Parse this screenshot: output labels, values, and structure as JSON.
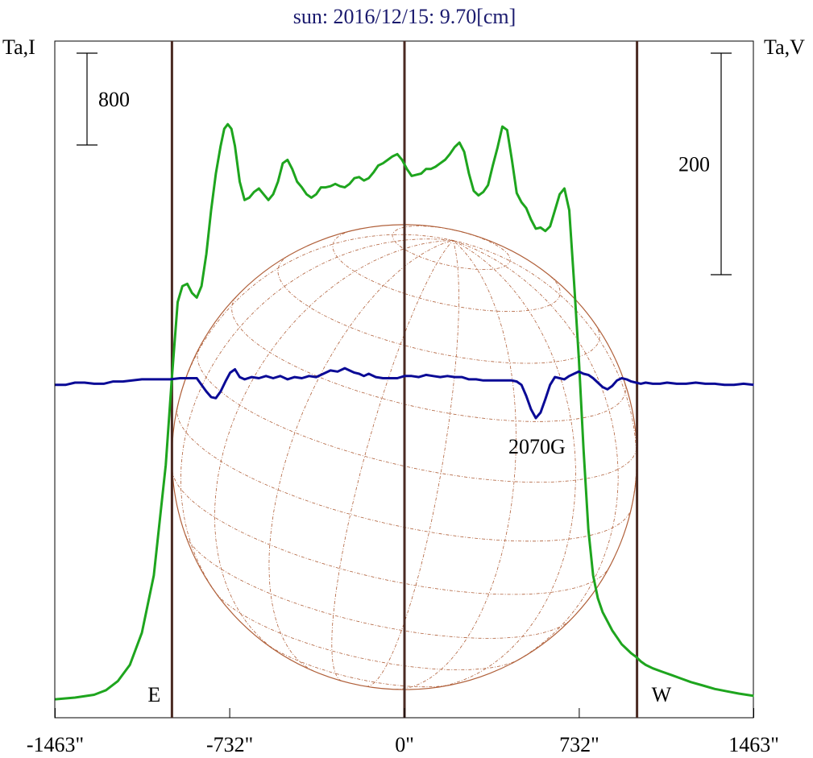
{
  "chart_data": {
    "type": "line",
    "title": "sun: 2016/12/15: 9.70[cm]",
    "y_left_label": "Ta,I",
    "y_right_label": "Ta,V",
    "x_unit": "arcsec",
    "xlim": [
      -1463,
      1463
    ],
    "x_ticks": [
      -1463,
      -732,
      0,
      732,
      1463
    ],
    "x_tick_labels": [
      "-1463\"",
      "-732\"",
      "0\"",
      "732\"",
      "1463\""
    ],
    "limb_markers": [
      {
        "x": -974,
        "label": "E"
      },
      {
        "x": 0,
        "label": ""
      },
      {
        "x": 974,
        "label": "W"
      }
    ],
    "scale_bars": [
      {
        "axis": "left",
        "label": "800",
        "value": 800
      },
      {
        "axis": "right",
        "label": "200",
        "value": 200
      }
    ],
    "annotations": [
      {
        "label": "2070G",
        "x": 555
      }
    ],
    "colors": {
      "title": "#1a1a6e",
      "intensity": "#1ea51e",
      "polarization": "#0a0a96",
      "limb": "#4a2a22",
      "disk": "#b0603a",
      "text": "#000000"
    },
    "series": [
      {
        "key": "intensity",
        "axis": "left",
        "x": [
          -1463,
          -1380,
          -1300,
          -1250,
          -1200,
          -1150,
          -1100,
          -1050,
          -1000,
          -975,
          -950,
          -930,
          -910,
          -890,
          -870,
          -850,
          -830,
          -810,
          -790,
          -770,
          -755,
          -740,
          -725,
          -710,
          -690,
          -670,
          -650,
          -630,
          -610,
          -590,
          -570,
          -550,
          -530,
          -510,
          -490,
          -470,
          -450,
          -430,
          -410,
          -390,
          -370,
          -350,
          -330,
          -310,
          -290,
          -270,
          -250,
          -230,
          -210,
          -190,
          -170,
          -150,
          -130,
          -110,
          -90,
          -70,
          -50,
          -30,
          -10,
          10,
          30,
          50,
          70,
          90,
          110,
          130,
          150,
          170,
          190,
          210,
          230,
          250,
          270,
          290,
          310,
          330,
          350,
          370,
          390,
          410,
          430,
          450,
          470,
          490,
          510,
          530,
          550,
          570,
          590,
          610,
          630,
          650,
          670,
          690,
          710,
          730,
          750,
          770,
          790,
          810,
          830,
          850,
          870,
          890,
          910,
          930,
          950,
          970,
          990,
          1010,
          1040,
          1080,
          1120,
          1160,
          1200,
          1250,
          1300,
          1350,
          1400,
          1463
        ],
        "y": [
          20,
          35,
          60,
          100,
          180,
          320,
          600,
          1100,
          2060,
          2800,
          3480,
          3620,
          3640,
          3560,
          3520,
          3620,
          3900,
          4280,
          4600,
          4840,
          4990,
          5030,
          4990,
          4840,
          4530,
          4370,
          4390,
          4440,
          4470,
          4420,
          4370,
          4420,
          4530,
          4690,
          4720,
          4640,
          4530,
          4480,
          4420,
          4390,
          4420,
          4480,
          4480,
          4490,
          4510,
          4490,
          4480,
          4510,
          4560,
          4570,
          4540,
          4560,
          4610,
          4670,
          4690,
          4720,
          4750,
          4770,
          4720,
          4640,
          4580,
          4590,
          4600,
          4640,
          4640,
          4660,
          4690,
          4720,
          4770,
          4830,
          4870,
          4790,
          4600,
          4450,
          4410,
          4440,
          4500,
          4670,
          4830,
          5010,
          4980,
          4720,
          4430,
          4350,
          4300,
          4200,
          4120,
          4130,
          4100,
          4140,
          4280,
          4420,
          4470,
          4280,
          3660,
          3000,
          2200,
          1500,
          1100,
          900,
          780,
          700,
          620,
          560,
          500,
          460,
          420,
          390,
          350,
          320,
          290,
          260,
          230,
          200,
          170,
          140,
          110,
          90,
          70,
          50
        ]
      },
      {
        "key": "polarization",
        "axis": "right",
        "x": [
          -1463,
          -1420,
          -1380,
          -1340,
          -1300,
          -1260,
          -1220,
          -1180,
          -1140,
          -1100,
          -1060,
          -1020,
          -980,
          -940,
          -900,
          -870,
          -850,
          -830,
          -810,
          -790,
          -770,
          -750,
          -730,
          -710,
          -690,
          -670,
          -640,
          -610,
          -580,
          -550,
          -520,
          -490,
          -460,
          -430,
          -400,
          -370,
          -340,
          -310,
          -280,
          -250,
          -230,
          -210,
          -190,
          -170,
          -150,
          -120,
          -90,
          -60,
          -30,
          0,
          30,
          60,
          90,
          120,
          150,
          180,
          210,
          240,
          270,
          300,
          330,
          360,
          390,
          420,
          450,
          470,
          490,
          510,
          530,
          550,
          570,
          590,
          610,
          630,
          650,
          670,
          690,
          710,
          730,
          750,
          770,
          790,
          810,
          830,
          850,
          870,
          890,
          910,
          930,
          950,
          970,
          990,
          1010,
          1040,
          1070,
          1100,
          1140,
          1180,
          1220,
          1260,
          1300,
          1340,
          1380,
          1420,
          1463
        ],
        "y": [
          -2,
          -2,
          0,
          0,
          -1,
          -1,
          1,
          1,
          2,
          3,
          3,
          3,
          3,
          4,
          4,
          4,
          -2,
          -8,
          -13,
          -14,
          -8,
          1,
          9,
          12,
          5,
          3,
          5,
          4,
          6,
          4,
          6,
          3,
          5,
          4,
          6,
          5,
          8,
          11,
          10,
          13,
          11,
          9,
          8,
          6,
          8,
          5,
          4,
          4,
          4,
          6,
          6,
          5,
          7,
          6,
          5,
          6,
          5,
          5,
          3,
          3,
          2,
          2,
          2,
          2,
          2,
          1,
          -2,
          -12,
          -24,
          -32,
          -27,
          -15,
          -2,
          5,
          4,
          3,
          6,
          8,
          10,
          8,
          7,
          4,
          0,
          -4,
          -6,
          -3,
          2,
          4,
          3,
          1,
          0,
          -1,
          0,
          -1,
          -1,
          0,
          -1,
          -1,
          0,
          -1,
          -1,
          -2,
          -2,
          -1,
          -2
        ]
      }
    ],
    "disk": {
      "radius": 974,
      "center_y": 2130
    }
  }
}
